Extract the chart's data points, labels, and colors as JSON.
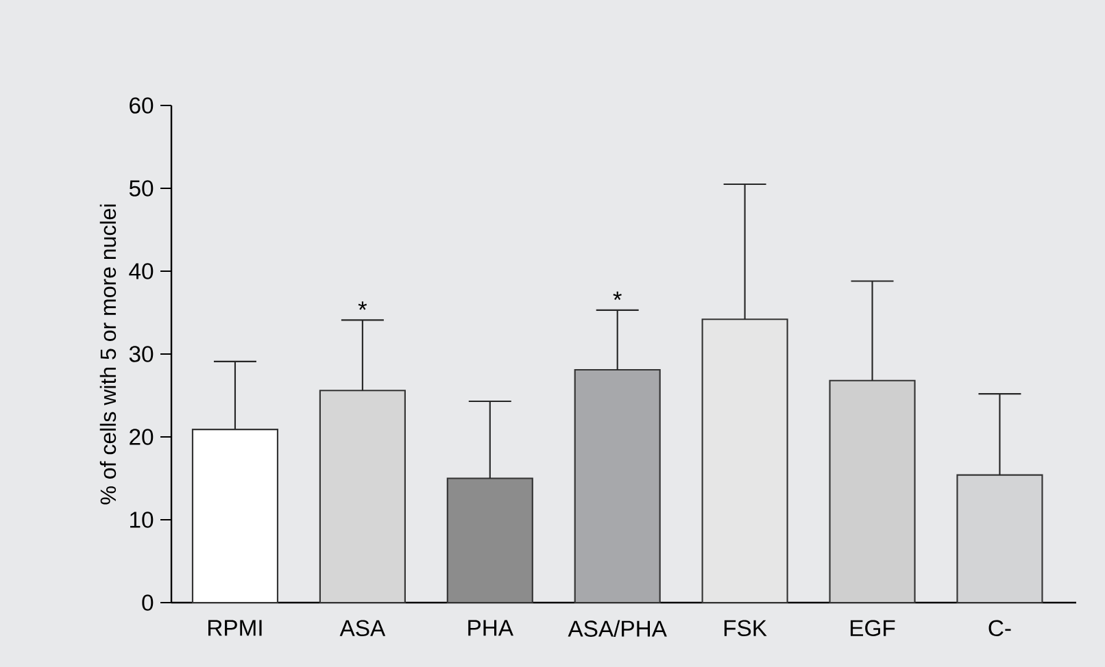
{
  "chart_data": {
    "type": "bar",
    "ylabel": "% of cells with 5 or more nuclei",
    "categories": [
      "RPMI",
      "ASA",
      "PHA",
      "ASA/PHA",
      "FSK",
      "EGF",
      "C-"
    ],
    "values": [
      20.9,
      25.6,
      15.0,
      28.1,
      34.2,
      26.8,
      15.4
    ],
    "colors": [
      "#ffffff",
      "#d6d6d6",
      "#8c8c8c",
      "#a7a8ab",
      "#e6e6e6",
      "#cfcfcf",
      "#d3d4d6"
    ],
    "errors": [
      [
        20.9,
        29.1
      ],
      [
        25.6,
        34.1
      ],
      [
        15.0,
        24.3
      ],
      [
        28.1,
        35.3
      ],
      [
        34.2,
        50.5
      ],
      [
        26.8,
        38.8
      ],
      [
        15.4,
        25.2
      ]
    ],
    "ylim": [
      0,
      60
    ],
    "yticks": [
      0,
      10,
      20,
      30,
      40,
      50,
      60
    ],
    "annotations": [
      {
        "text": "*",
        "x": "ASA",
        "y": 34.1
      },
      {
        "text": "*",
        "x": "ASA/PHA",
        "y": 35.3
      }
    ]
  }
}
